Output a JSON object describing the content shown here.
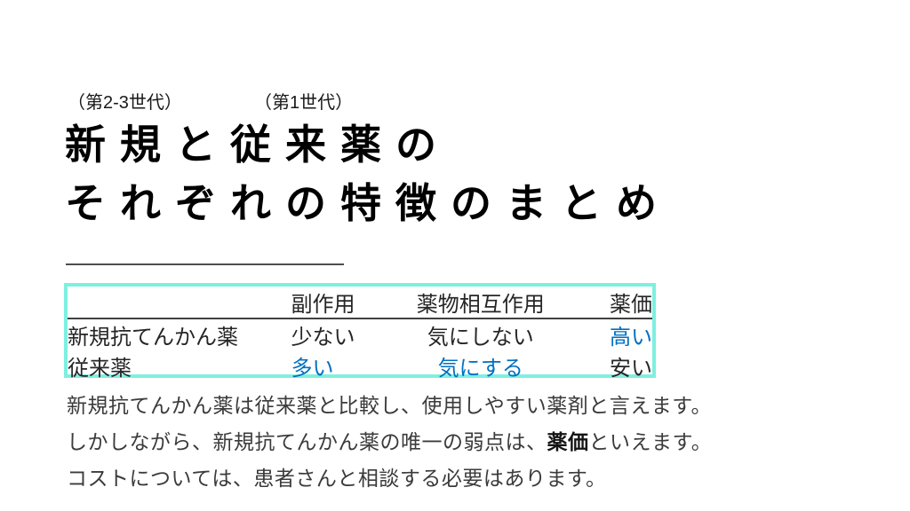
{
  "slide": {
    "annotations": {
      "new_generation": "（第2-3世代）",
      "first_generation": "（第1世代）"
    },
    "title": {
      "line1": "新規と従来薬の",
      "line2": "それぞれの特徴のまとめ"
    },
    "table": {
      "headers": [
        "",
        "副作用",
        "薬物相互作用",
        "薬価"
      ],
      "rows": [
        {
          "cells": [
            "新規抗てんかん薬",
            "少ない",
            "気にしない",
            "高い"
          ]
        },
        {
          "cells": [
            "従来薬",
            "多い",
            "気にする",
            "安い"
          ]
        }
      ]
    },
    "body": {
      "line1": "新規抗てんかん薬は従来薬と比較し、使用しやすい薬剤と言えます。",
      "line2_pre": "しかしながら、新規抗てんかん薬の唯一の弱点は、",
      "line2_bold": "薬価",
      "line2_post": "といえます。",
      "line3": "コストについては、患者さんと相談する必要はあります。"
    },
    "colors": {
      "accent_blue": "#0070C0",
      "table_border_cyan": "#7EF0E0",
      "title_black": "#000000",
      "body_text_gray": "#3B3B3B"
    }
  }
}
